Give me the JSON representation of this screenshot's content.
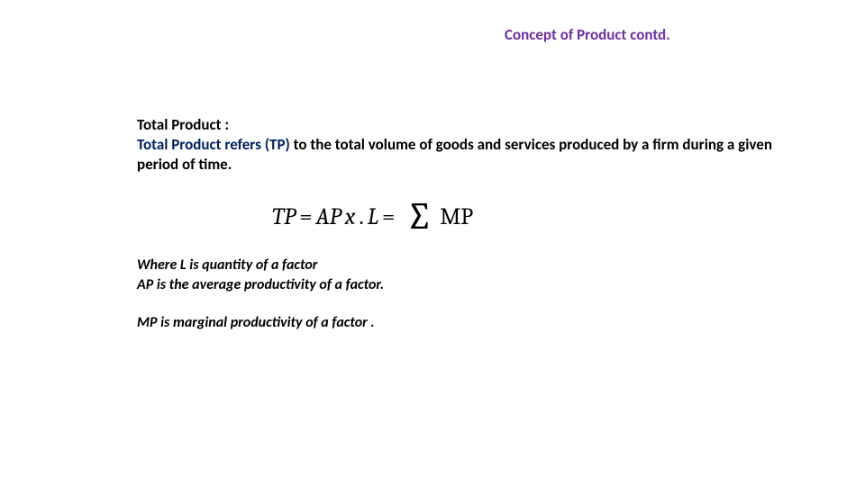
{
  "title": "Concept of Product contd.",
  "section": {
    "heading": "Total Product :",
    "tp_label": "Total Product refers (TP)",
    "definition_rest": " to the total volume of goods and services produced by a firm during a given period of time."
  },
  "formula": {
    "lhs_tp": "TP",
    "eq1": " = ",
    "ap": "AP ",
    "x": "x",
    "dot": ".",
    "l": "L",
    "eq2": " = ",
    "sigma": "∑",
    "mp": "MP"
  },
  "where": {
    "line1": "Where  L is  quantity of a factor",
    "line2": "AP is the average productivity of a factor.",
    "line3": "MP is marginal productivity of a factor ."
  },
  "colors": {
    "title": "#7030a0",
    "tp_label": "#002060",
    "text": "#000000",
    "background": "#ffffff"
  }
}
